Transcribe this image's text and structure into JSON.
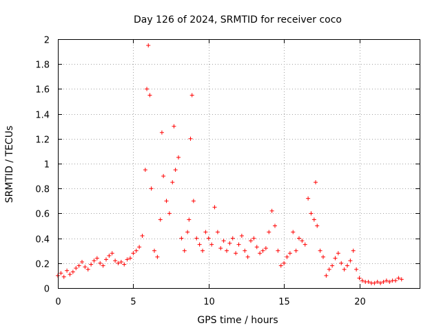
{
  "chart_data": {
    "type": "scatter",
    "title": "Day 126 of 2024, SRMTID for receiver coco",
    "xlabel": "GPS time / hours",
    "ylabel": "SRMTID / TECUs",
    "xlim": [
      0,
      24
    ],
    "ylim": [
      0,
      2
    ],
    "x_ticks": [
      0,
      5,
      10,
      15,
      20
    ],
    "y_ticks": [
      0,
      0.2,
      0.4,
      0.6,
      0.8,
      1,
      1.2,
      1.4,
      1.6,
      1.8,
      2
    ],
    "x_tick_labels": [
      "0",
      "5",
      "10",
      "15",
      "20"
    ],
    "y_tick_labels": [
      "0",
      "0.2",
      "0.4",
      "0.6",
      "0.8",
      "1",
      "1.2",
      "1.4",
      "1.6",
      "1.8",
      "2"
    ],
    "grid": true,
    "marker": "+",
    "color": "#ff0000",
    "series": [
      {
        "name": "SRMTID",
        "x": [
          0.0,
          0.2,
          0.4,
          0.6,
          0.8,
          1.0,
          1.2,
          1.4,
          1.6,
          1.8,
          2.0,
          2.2,
          2.4,
          2.6,
          2.8,
          3.0,
          3.2,
          3.4,
          3.6,
          3.8,
          4.0,
          4.2,
          4.4,
          4.6,
          4.8,
          5.0,
          5.2,
          5.4,
          5.6,
          5.8,
          5.9,
          6.0,
          6.1,
          6.2,
          6.4,
          6.6,
          6.8,
          6.9,
          7.0,
          7.2,
          7.4,
          7.6,
          7.7,
          7.8,
          8.0,
          8.2,
          8.4,
          8.6,
          8.7,
          8.8,
          8.9,
          9.0,
          9.2,
          9.4,
          9.6,
          9.8,
          10.0,
          10.2,
          10.4,
          10.6,
          10.8,
          11.0,
          11.2,
          11.4,
          11.6,
          11.8,
          12.0,
          12.2,
          12.4,
          12.6,
          12.8,
          13.0,
          13.2,
          13.4,
          13.6,
          13.8,
          14.0,
          14.2,
          14.4,
          14.6,
          14.8,
          15.0,
          15.2,
          15.4,
          15.6,
          15.8,
          16.0,
          16.2,
          16.4,
          16.6,
          16.8,
          17.0,
          17.1,
          17.2,
          17.4,
          17.6,
          17.8,
          18.0,
          18.2,
          18.4,
          18.6,
          18.8,
          19.0,
          19.2,
          19.4,
          19.6,
          19.8,
          20.0,
          20.2,
          20.4,
          20.6,
          20.8,
          21.0,
          21.2,
          21.4,
          21.6,
          21.8,
          22.0,
          22.2,
          22.4,
          22.6,
          22.8
        ],
        "y": [
          0.1,
          0.12,
          0.09,
          0.14,
          0.11,
          0.13,
          0.16,
          0.18,
          0.21,
          0.17,
          0.15,
          0.19,
          0.22,
          0.24,
          0.2,
          0.18,
          0.23,
          0.26,
          0.28,
          0.22,
          0.2,
          0.21,
          0.19,
          0.23,
          0.24,
          0.28,
          0.3,
          0.33,
          0.42,
          0.95,
          1.6,
          1.95,
          1.55,
          0.8,
          0.3,
          0.25,
          0.55,
          1.25,
          0.9,
          0.7,
          0.6,
          0.85,
          1.3,
          0.95,
          1.05,
          0.4,
          0.3,
          0.45,
          0.55,
          1.2,
          1.55,
          0.7,
          0.4,
          0.35,
          0.3,
          0.45,
          0.4,
          0.35,
          0.65,
          0.45,
          0.32,
          0.38,
          0.3,
          0.36,
          0.4,
          0.28,
          0.35,
          0.42,
          0.3,
          0.25,
          0.38,
          0.4,
          0.33,
          0.28,
          0.3,
          0.32,
          0.45,
          0.62,
          0.5,
          0.3,
          0.18,
          0.2,
          0.25,
          0.28,
          0.45,
          0.3,
          0.4,
          0.38,
          0.35,
          0.72,
          0.6,
          0.55,
          0.85,
          0.5,
          0.3,
          0.25,
          0.1,
          0.15,
          0.18,
          0.24,
          0.28,
          0.2,
          0.15,
          0.18,
          0.22,
          0.3,
          0.15,
          0.08,
          0.06,
          0.05,
          0.05,
          0.04,
          0.04,
          0.05,
          0.04,
          0.05,
          0.06,
          0.05,
          0.06,
          0.06,
          0.08,
          0.07
        ]
      }
    ]
  }
}
